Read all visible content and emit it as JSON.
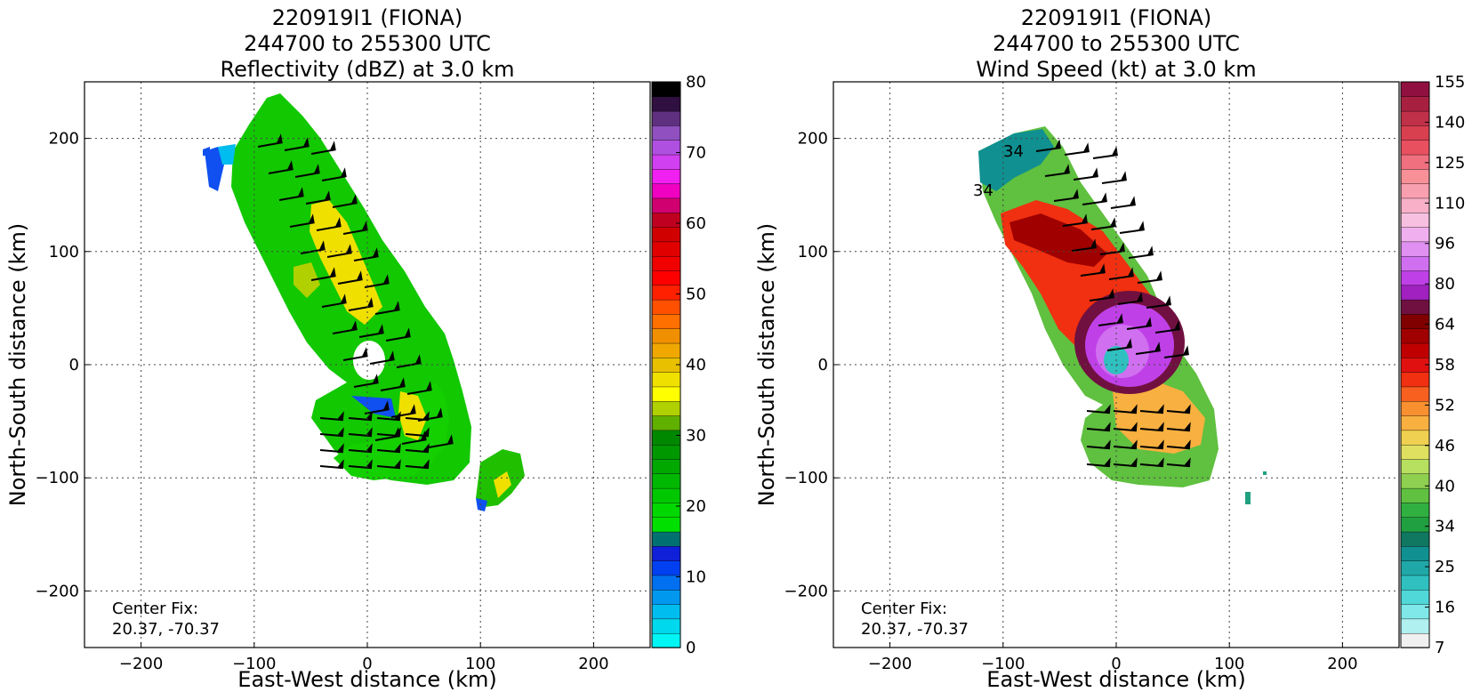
{
  "chart_data": [
    {
      "type": "heatmap",
      "title": [
        "220919I1 (FIONA)",
        "244700 to 255300 UTC",
        "Reflectivity (dBZ) at 3.0 km"
      ],
      "xlabel": "East-West distance (km)",
      "ylabel": "North-South distance (km)",
      "xlim": [
        -250,
        250
      ],
      "ylim": [
        -250,
        250
      ],
      "xticks": [
        -200,
        -100,
        0,
        100,
        200
      ],
      "yticks": [
        -200,
        -100,
        0,
        100,
        200
      ],
      "grid": true,
      "annotation": [
        "Center Fix:",
        "20.37, -70.37"
      ],
      "colorbar": {
        "min": 0,
        "max": 80,
        "ticks": [
          "0",
          "10",
          "20",
          "30",
          "40",
          "50",
          "60",
          "70",
          "80"
        ],
        "colors": [
          "#00f5f5",
          "#00d8ee",
          "#00bdf0",
          "#0098ef",
          "#0070f0",
          "#0040f0",
          "#1020d8",
          "#007070",
          "#00e000",
          "#00d800",
          "#00c800",
          "#00b800",
          "#00a800",
          "#009800",
          "#008800",
          "#60b000",
          "#b0d000",
          "#ffff00",
          "#f0e000",
          "#e8c000",
          "#f0a800",
          "#f09000",
          "#ff7000",
          "#ff5000",
          "#ff2000",
          "#ff0000",
          "#f00000",
          "#e00000",
          "#d00000",
          "#c00020",
          "#d00070",
          "#f000c0",
          "#f020f0",
          "#d040f0",
          "#b050e0",
          "#9050c0",
          "#603080",
          "#301040",
          "#000000"
        ]
      },
      "field_description_levels": "reflectivity shaded 0-80 dBZ; wind barbs overlaid"
    },
    {
      "type": "heatmap",
      "title": [
        "220919I1 (FIONA)",
        "244700 to 255300 UTC",
        "Wind Speed (kt) at 3.0 km"
      ],
      "xlabel": "East-West distance (km)",
      "ylabel": "North-South distance (km)",
      "xlim": [
        -250,
        250
      ],
      "ylim": [
        -250,
        250
      ],
      "xticks": [
        -200,
        -100,
        0,
        100,
        200
      ],
      "yticks": [
        -200,
        -100,
        0,
        100,
        200
      ],
      "grid": true,
      "annotation": [
        "Center Fix:",
        "20.37, -70.37"
      ],
      "contour_labels": [
        "34",
        "34"
      ],
      "colorbar": {
        "ticks": [
          "7",
          "16",
          "25",
          "34",
          "40",
          "46",
          "52",
          "58",
          "64",
          "80",
          "96",
          "110",
          "125",
          "140",
          "155"
        ],
        "colors": [
          "#f0f0f0",
          "#b0f0f0",
          "#80e8e8",
          "#50d8d8",
          "#30c0c0",
          "#20a8a8",
          "#109090",
          "#107860",
          "#20a040",
          "#30b040",
          "#60c040",
          "#90d050",
          "#b8e060",
          "#e0e060",
          "#f0d050",
          "#f8b040",
          "#f89030",
          "#f86020",
          "#f03010",
          "#e01010",
          "#c00000",
          "#a00000",
          "#800000",
          "#701040",
          "#a020c0",
          "#c040e8",
          "#d070f0",
          "#e090f0",
          "#f0b0f0",
          "#f8c0e0",
          "#f8b0c8",
          "#f8a0b0",
          "#f89098",
          "#f07080",
          "#e85060",
          "#d84050",
          "#c03048",
          "#a82040",
          "#901040"
        ]
      }
    }
  ]
}
